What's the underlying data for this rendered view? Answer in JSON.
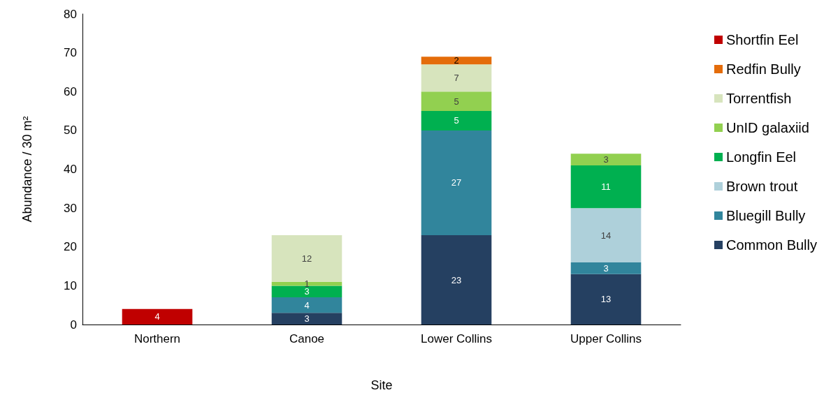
{
  "chart_data": {
    "type": "bar",
    "stacked": true,
    "xlabel": "Site",
    "ylabel": "Abundance / 30 m²",
    "categories": [
      "Northern",
      "Canoe",
      "Lower Collins",
      "Upper Collins"
    ],
    "series": [
      {
        "name": "Common Bully",
        "color": "#254061",
        "values": [
          null,
          3,
          23,
          13
        ]
      },
      {
        "name": "Bluegill Bully",
        "color": "#31859c",
        "values": [
          null,
          4,
          27,
          3
        ]
      },
      {
        "name": "Brown trout",
        "color": "#aed0da",
        "values": [
          null,
          null,
          null,
          14
        ]
      },
      {
        "name": "Longfin Eel",
        "color": "#00b050",
        "values": [
          null,
          3,
          5,
          11
        ]
      },
      {
        "name": "UnID galaxiid",
        "color": "#92d050",
        "values": [
          null,
          1,
          5,
          3
        ]
      },
      {
        "name": "Torrentfish",
        "color": "#d7e4bd",
        "values": [
          null,
          12,
          7,
          null
        ]
      },
      {
        "name": "Redfin Bully",
        "color": "#e46c0a",
        "values": [
          null,
          null,
          2,
          null
        ]
      },
      {
        "name": "Shortfin Eel",
        "color": "#c00000",
        "values": [
          4,
          null,
          null,
          null
        ]
      }
    ],
    "ylim": [
      0,
      80
    ],
    "yticks": [
      0,
      10,
      20,
      30,
      40,
      50,
      60,
      70,
      80
    ],
    "data_labels": true,
    "grid": false,
    "legend": "right"
  }
}
